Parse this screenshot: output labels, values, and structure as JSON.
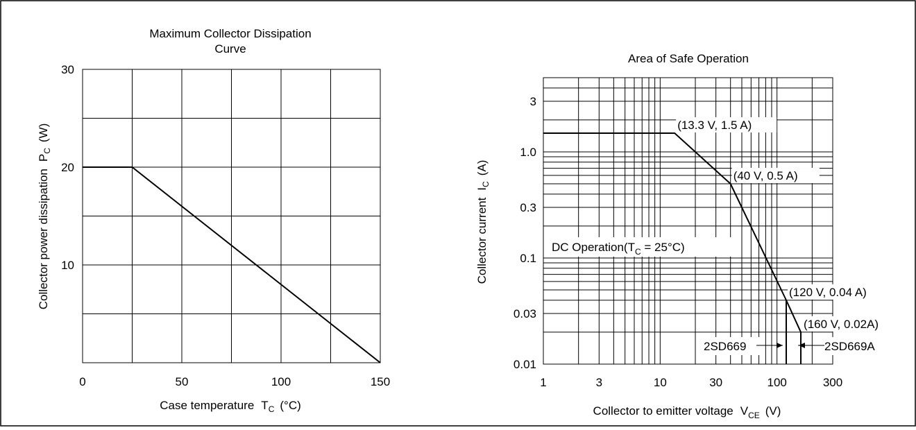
{
  "chart_data": [
    {
      "type": "line",
      "title": "Maximum Collector Dissipation Curve",
      "title_lines": [
        "Maximum Collector Dissipation",
        "Curve"
      ],
      "xlabel": "Case temperature",
      "xlabel_symbol": "T",
      "xlabel_sub": "C",
      "xlabel_unit": "(°C)",
      "ylabel": "Collector power dissipation",
      "ylabel_symbol": "P",
      "ylabel_sub": "C",
      "ylabel_unit": "(W)",
      "xlim": [
        0,
        150
      ],
      "ylim": [
        0,
        30
      ],
      "x_ticks": [
        "0",
        "50",
        "100",
        "150"
      ],
      "y_ticks": [
        "10",
        "20",
        "30"
      ],
      "grid": true,
      "series": [
        {
          "x": [
            0,
            25,
            150
          ],
          "y": [
            20,
            20,
            0
          ]
        }
      ]
    },
    {
      "type": "line",
      "title": "Area of Safe Operation",
      "xlabel": "Collector to emitter voltage",
      "xlabel_symbol": "V",
      "xlabel_sub": "CE",
      "xlabel_unit": "(V)",
      "ylabel": "Collector current",
      "ylabel_symbol": "I",
      "ylabel_sub": "C",
      "ylabel_unit": "(A)",
      "x_scale": "log",
      "y_scale": "log",
      "xlim": [
        1,
        300
      ],
      "ylim": [
        0.01,
        5
      ],
      "x_ticks": [
        "1",
        "3",
        "10",
        "30",
        "100",
        "300"
      ],
      "y_ticks": [
        "0.01",
        "0.03",
        "0.1",
        "0.3",
        "1.0",
        "3"
      ],
      "grid": true,
      "series": [
        {
          "x": [
            1,
            13.3,
            40,
            120,
            160
          ],
          "y": [
            1.5,
            1.5,
            0.5,
            0.04,
            0.02
          ]
        }
      ],
      "verticals": [
        {
          "x": 120,
          "y_top": 0.04,
          "y_bottom": 0.01
        },
        {
          "x": 160,
          "y_top": 0.02,
          "y_bottom": 0.01
        }
      ],
      "annotations": [
        {
          "text": "(13.3 V, 1.5 A)",
          "x": 13.3,
          "y": 1.5
        },
        {
          "text": "(40 V, 0.5 A)",
          "x": 40,
          "y": 0.5
        },
        {
          "text": "(120 V, 0.04 A)",
          "x": 120,
          "y": 0.04
        },
        {
          "text": "(160 V, 0.02A)",
          "x": 160,
          "y": 0.02
        }
      ],
      "dc_label": {
        "prefix": "DC Operation(T",
        "sub": "C",
        "suffix": " = 25°C)"
      },
      "part_labels": [
        {
          "text": "2SD669",
          "x": 120
        },
        {
          "text": "2SD669A",
          "x": 160
        }
      ]
    }
  ]
}
